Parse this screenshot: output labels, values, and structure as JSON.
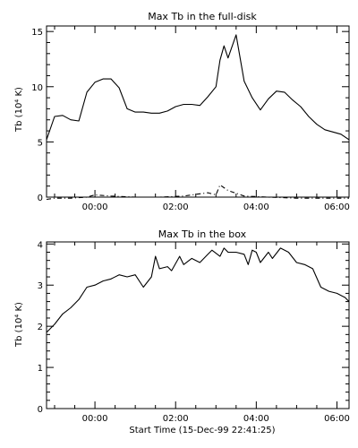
{
  "chart_data": [
    {
      "type": "line",
      "title": "Max Tb in the full-disk",
      "ylabel": "Tb (10⁴ K)",
      "xlabel": "",
      "xlim": [
        -1.2,
        6.3
      ],
      "ylim": [
        0,
        15.5
      ],
      "x_ticks": [
        0,
        2,
        4,
        6
      ],
      "x_tick_labels": [
        "00:00",
        "02:00",
        "04:00",
        "06:00"
      ],
      "y_ticks": [
        0,
        5,
        10,
        15
      ],
      "y_tick_labels": [
        "0",
        "5",
        "10",
        "15"
      ],
      "grid": false,
      "series": [
        {
          "style": "solid",
          "x": [
            -1.2,
            -1.0,
            -0.8,
            -0.6,
            -0.4,
            -0.2,
            0.0,
            0.2,
            0.4,
            0.6,
            0.8,
            1.0,
            1.2,
            1.4,
            1.6,
            1.8,
            2.0,
            2.2,
            2.4,
            2.6,
            2.8,
            3.0,
            3.1,
            3.2,
            3.3,
            3.5,
            3.7,
            3.9,
            4.1,
            4.3,
            4.5,
            4.7,
            4.9,
            5.1,
            5.3,
            5.5,
            5.7,
            5.9,
            6.1,
            6.3
          ],
          "y": [
            5.2,
            7.3,
            7.4,
            7.0,
            6.9,
            9.5,
            10.4,
            10.7,
            10.7,
            9.9,
            8.0,
            7.7,
            7.7,
            7.6,
            7.6,
            7.8,
            8.2,
            8.4,
            8.4,
            8.3,
            9.1,
            10.0,
            12.4,
            13.7,
            12.6,
            14.7,
            10.5,
            9.0,
            7.9,
            8.9,
            9.6,
            9.5,
            8.8,
            8.2,
            7.3,
            6.6,
            6.1,
            5.9,
            5.7,
            5.2
          ]
        },
        {
          "style": "dashdot",
          "x": [
            -1.2,
            -1.0,
            -0.6,
            -0.2,
            0.0,
            0.4,
            1.0,
            1.6,
            2.2,
            2.6,
            2.8,
            3.0,
            3.1,
            3.3,
            3.7,
            4.3,
            5.0,
            5.7,
            6.3
          ],
          "y": [
            -0.2,
            -0.1,
            -0.1,
            0.0,
            0.2,
            0.1,
            0.0,
            0.0,
            0.1,
            0.3,
            0.4,
            0.2,
            1.1,
            0.6,
            0.1,
            0.0,
            -0.1,
            -0.1,
            -0.1
          ]
        }
      ]
    },
    {
      "type": "line",
      "title": "Max Tb in the box",
      "ylabel": "Tb (10⁴ K)",
      "xlabel": "Start Time (15-Dec-99 22:41:25)",
      "xlim": [
        -1.2,
        6.3
      ],
      "ylim": [
        0,
        4.05
      ],
      "x_ticks": [
        0,
        2,
        4,
        6
      ],
      "x_tick_labels": [
        "00:00",
        "02:00",
        "04:00",
        "06:00"
      ],
      "y_ticks": [
        0,
        1,
        2,
        3,
        4
      ],
      "y_tick_labels": [
        "0",
        "1",
        "2",
        "3",
        "4"
      ],
      "grid": false,
      "series": [
        {
          "style": "solid",
          "x": [
            -1.2,
            -1.0,
            -0.8,
            -0.6,
            -0.4,
            -0.2,
            0.0,
            0.2,
            0.4,
            0.6,
            0.8,
            1.0,
            1.2,
            1.4,
            1.5,
            1.6,
            1.8,
            1.9,
            2.1,
            2.2,
            2.4,
            2.6,
            2.8,
            2.9,
            3.1,
            3.2,
            3.3,
            3.5,
            3.7,
            3.8,
            3.9,
            4.0,
            4.1,
            4.3,
            4.4,
            4.6,
            4.8,
            5.0,
            5.2,
            5.4,
            5.6,
            5.8,
            6.0,
            6.2,
            6.3
          ],
          "y": [
            1.85,
            2.05,
            2.3,
            2.45,
            2.65,
            2.95,
            3.0,
            3.1,
            3.15,
            3.25,
            3.2,
            3.25,
            2.95,
            3.2,
            3.7,
            3.4,
            3.45,
            3.35,
            3.7,
            3.5,
            3.65,
            3.55,
            3.75,
            3.85,
            3.7,
            3.9,
            3.8,
            3.8,
            3.75,
            3.5,
            3.85,
            3.8,
            3.55,
            3.8,
            3.65,
            3.9,
            3.8,
            3.55,
            3.5,
            3.4,
            2.95,
            2.85,
            2.8,
            2.7,
            2.6
          ]
        }
      ]
    }
  ]
}
